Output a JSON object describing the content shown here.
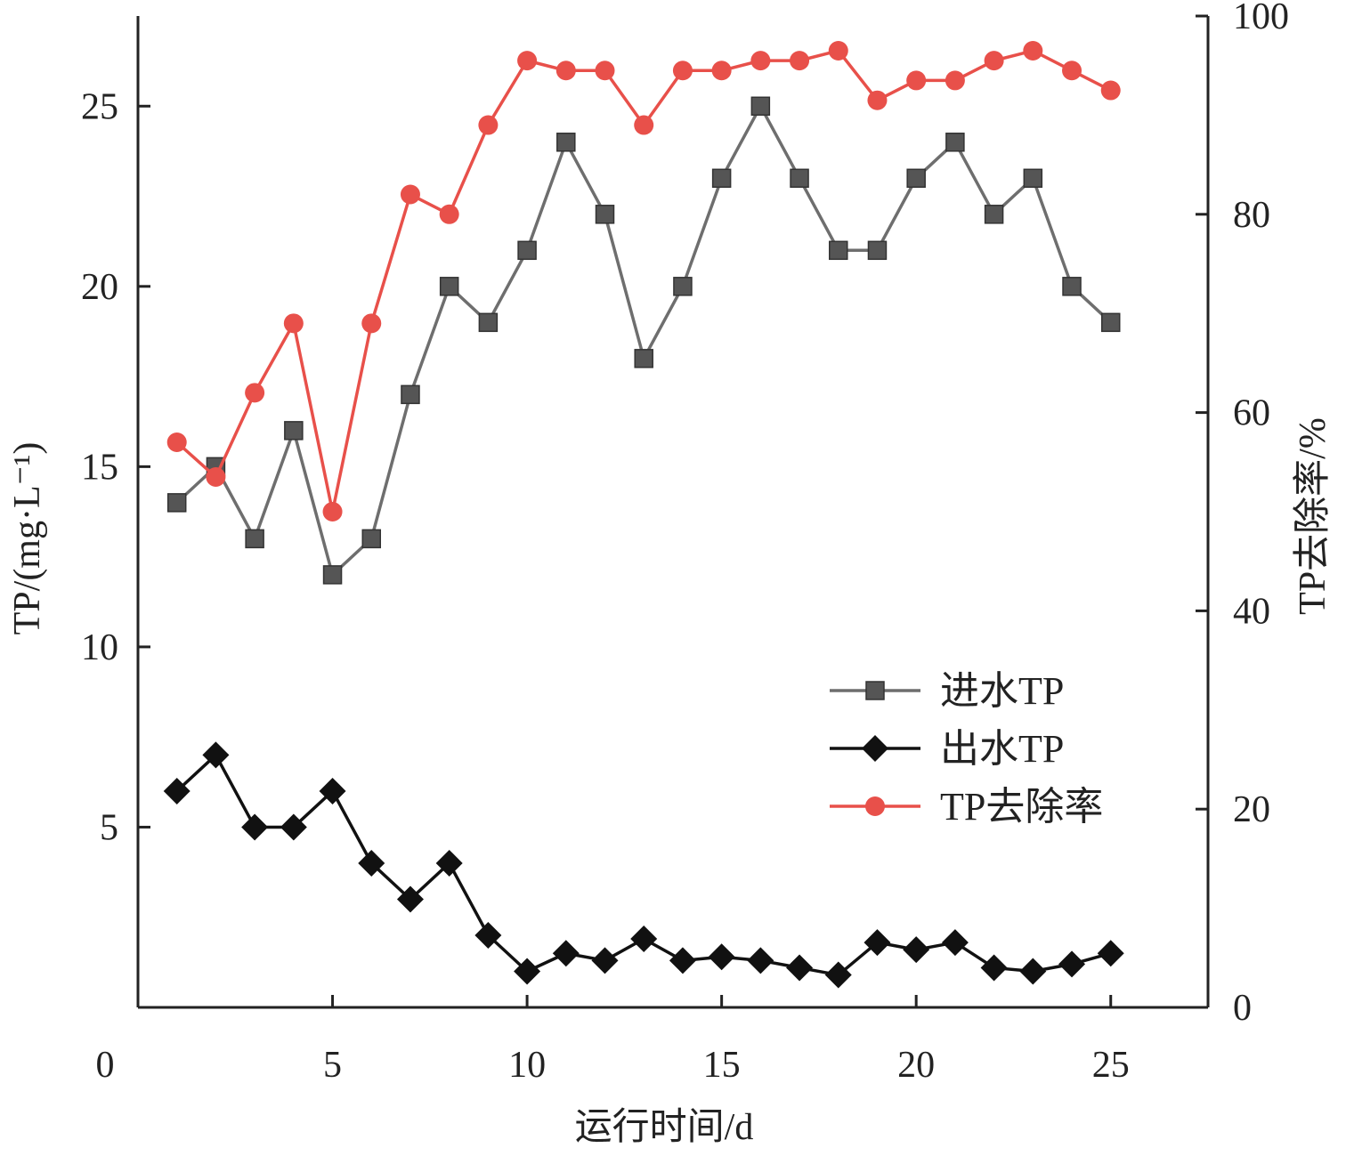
{
  "chart_data": {
    "type": "line",
    "xlabel": "运行时间/d",
    "ylabel_left": "TP/(mg·L⁻¹)",
    "ylabel_right": "TP去除率/%",
    "xlim": [
      0,
      27.5
    ],
    "ylim_left": [
      0,
      27.5
    ],
    "ylim_right": [
      0,
      100
    ],
    "x_ticks": [
      0,
      5,
      10,
      15,
      20,
      25
    ],
    "y_left_ticks": [
      5,
      10,
      15,
      20,
      25
    ],
    "y_right_ticks": [
      0,
      20,
      40,
      60,
      80,
      100
    ],
    "legend_position": "center-right",
    "x": [
      1,
      2,
      3,
      4,
      5,
      6,
      7,
      8,
      9,
      10,
      11,
      12,
      13,
      14,
      15,
      16,
      17,
      18,
      19,
      20,
      21,
      22,
      23,
      24,
      25
    ],
    "series": [
      {
        "name": "进水TP",
        "axis": "left",
        "marker": "square",
        "color": "#6e6e6e",
        "marker_color": "#555555",
        "values": [
          14,
          15,
          13,
          16,
          12,
          13,
          17,
          20,
          19,
          21,
          24,
          22,
          18,
          20,
          23,
          25,
          23,
          21,
          21,
          23,
          24,
          22,
          23,
          20,
          19
        ]
      },
      {
        "name": "出水TP",
        "axis": "left",
        "marker": "diamond",
        "color": "#111111",
        "marker_color": "#111111",
        "values": [
          6,
          7,
          5,
          5,
          6,
          4,
          3,
          4,
          2,
          1,
          1.5,
          1.3,
          1.9,
          1.3,
          1.4,
          1.3,
          1.1,
          0.9,
          1.8,
          1.6,
          1.8,
          1.1,
          1.0,
          1.2,
          1.5
        ]
      },
      {
        "name": "TP去除率",
        "axis": "right",
        "marker": "circle",
        "color": "#e8504a",
        "marker_color": "#e8504a",
        "values": [
          57,
          53.5,
          62,
          69,
          50,
          69,
          82,
          80,
          89,
          95.5,
          94.5,
          94.5,
          89,
          94.5,
          94.5,
          95.5,
          95.5,
          96.5,
          91.5,
          93.5,
          93.5,
          95.5,
          96.5,
          94.5,
          92.5
        ]
      }
    ]
  }
}
